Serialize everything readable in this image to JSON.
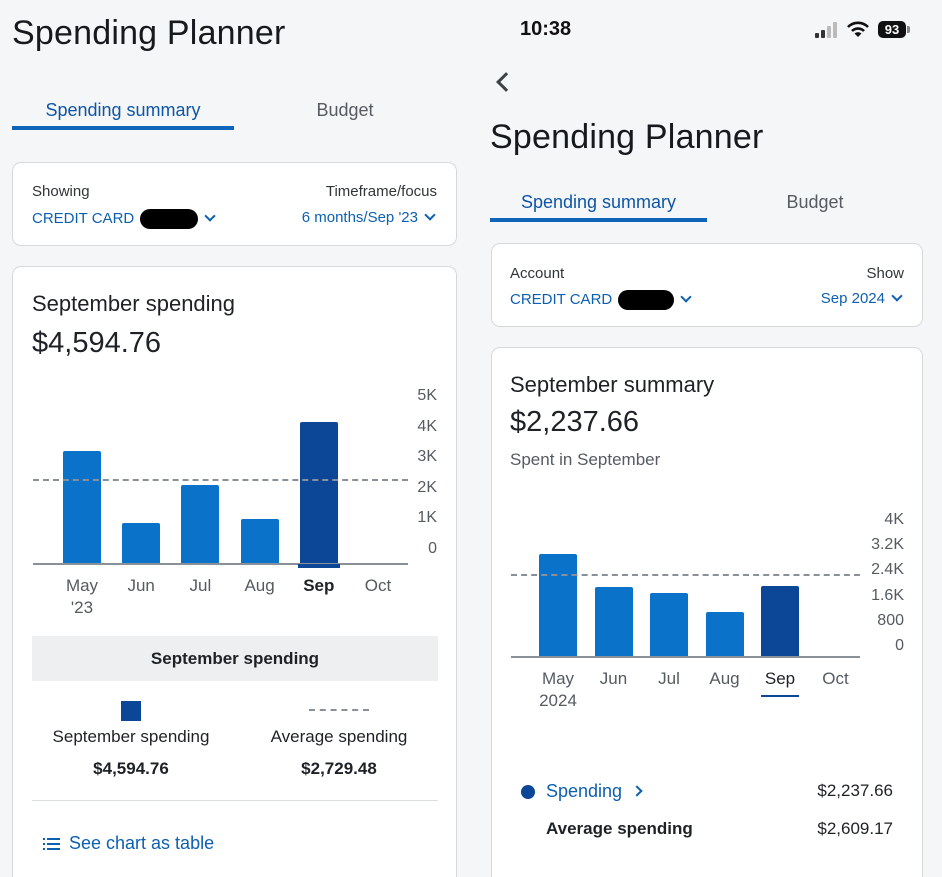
{
  "left": {
    "title": "Spending Planner",
    "tabs": {
      "active": "Spending summary",
      "other": "Budget"
    },
    "filter": {
      "showing_label": "Showing",
      "showing_value": "CREDIT CARD",
      "timeframe_label": "Timeframe/focus",
      "timeframe_value": "6 months/Sep '23"
    },
    "summary": {
      "heading": "September spending",
      "amount": "$4,594.76"
    },
    "legend": {
      "header": "September spending",
      "current_label": "September spending",
      "current_value": "$4,594.76",
      "average_label": "Average spending",
      "average_value": "$2,729.48"
    },
    "table_link": "See chart as table"
  },
  "right": {
    "status": {
      "time": "10:38",
      "battery": "93"
    },
    "title": "Spending Planner",
    "tabs": {
      "active": "Spending summary",
      "other": "Budget"
    },
    "filter": {
      "account_label": "Account",
      "account_value": "CREDIT CARD",
      "show_label": "Show",
      "show_value": "Sep 2024"
    },
    "summary": {
      "heading": "September summary",
      "amount": "$2,237.66",
      "caption": "Spent in September"
    },
    "legend": {
      "spending_label": "Spending",
      "spending_value": "$2,237.66",
      "average_label": "Average spending",
      "average_value": "$2,609.17"
    }
  },
  "colors": {
    "bar": "#0a72c9",
    "bar_selected": "#0b4697",
    "accent": "#0d64b8"
  },
  "chart_data": [
    {
      "type": "bar",
      "title": "September spending",
      "categories": [
        "May\n'23",
        "Jun",
        "Jul",
        "Aug",
        "Sep",
        "Oct"
      ],
      "values": [
        3650,
        1300,
        2550,
        1450,
        4594.76,
        0
      ],
      "selected_index": 4,
      "average": 2729.48,
      "yticks": [
        "5K",
        "4K",
        "3K",
        "2K",
        "1K",
        "0"
      ],
      "ylim": [
        0,
        5000
      ]
    },
    {
      "type": "bar",
      "title": "September summary",
      "categories": [
        "May\n2024",
        "Jun",
        "Jul",
        "Aug",
        "Sep",
        "Oct"
      ],
      "values": [
        3250,
        2200,
        2000,
        1400,
        2237.66,
        0
      ],
      "selected_index": 4,
      "average": 2609.17,
      "yticks": [
        "4K",
        "3.2K",
        "2.4K",
        "1.6K",
        "800",
        "0"
      ],
      "ylim": [
        0,
        4000
      ]
    }
  ]
}
